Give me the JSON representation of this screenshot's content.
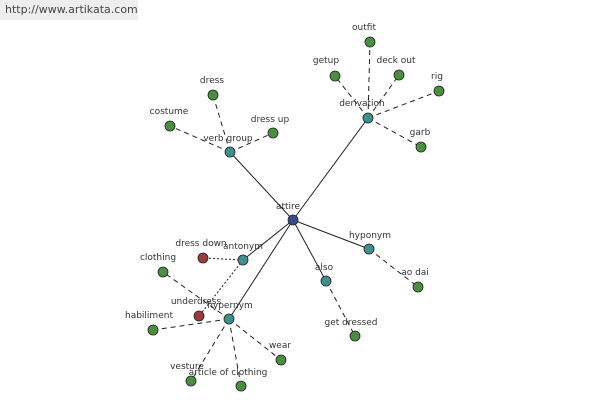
{
  "watermark": "http://www.artikata.com",
  "nodes": [
    {
      "label": "attire"
    },
    {
      "label": "derivation"
    },
    {
      "label": "verb group"
    },
    {
      "label": "hyponym"
    },
    {
      "label": "also"
    },
    {
      "label": "antonym"
    },
    {
      "label": "hypernym"
    },
    {
      "label": "outfit"
    },
    {
      "label": "getup"
    },
    {
      "label": "deck out"
    },
    {
      "label": "rig"
    },
    {
      "label": "garb"
    },
    {
      "label": "dress"
    },
    {
      "label": "costume"
    },
    {
      "label": "dress up"
    },
    {
      "label": "ao dai"
    },
    {
      "label": "get dressed"
    },
    {
      "label": "dress down"
    },
    {
      "label": "underdress"
    },
    {
      "label": "clothing"
    },
    {
      "label": "habiliment"
    },
    {
      "label": "wear"
    },
    {
      "label": "vesture"
    },
    {
      "label": "article of clothing"
    }
  ]
}
